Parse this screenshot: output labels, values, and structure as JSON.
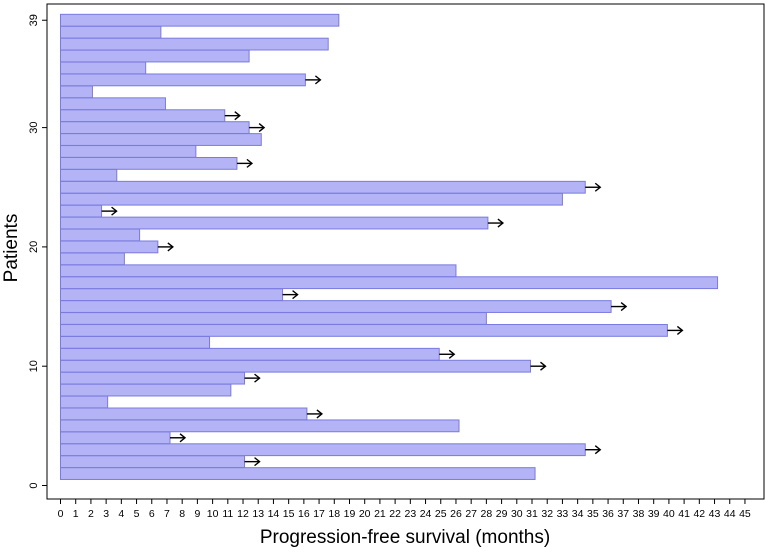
{
  "chart_data": {
    "type": "bar",
    "orientation": "horizontal",
    "xlabel": "Progression-free survival (months)",
    "ylabel": "Patients",
    "xlim": [
      0,
      46
    ],
    "ylim": [
      0,
      40
    ],
    "x_ticks": [
      0,
      1,
      2,
      3,
      4,
      5,
      6,
      7,
      8,
      9,
      10,
      11,
      12,
      13,
      14,
      15,
      16,
      17,
      18,
      19,
      20,
      21,
      22,
      23,
      24,
      25,
      26,
      27,
      28,
      29,
      30,
      31,
      32,
      33,
      34,
      35,
      36,
      37,
      38,
      39,
      40,
      41,
      42,
      43,
      44,
      45
    ],
    "x_tick_labels": [
      "0",
      "1",
      "2",
      "3",
      "4",
      "5",
      "6",
      "7",
      "8",
      "9",
      "10",
      "11",
      "12",
      "13",
      "14",
      "15",
      "16",
      "17",
      "18",
      "19",
      "20",
      "21",
      "22",
      "23",
      "24",
      "25",
      "26",
      "27",
      "28",
      "29",
      "30",
      "31",
      "32",
      "33",
      "34",
      "35",
      "36",
      "37",
      "38",
      "39",
      "40",
      "41",
      "42",
      "43",
      "44",
      "45"
    ],
    "y_ticks": [
      0,
      10,
      20,
      30,
      39
    ],
    "y_tick_labels": [
      "0",
      "10",
      "20",
      "30",
      "39"
    ],
    "bar_color": "#b3b3f5",
    "bar_edge_color": "#7a7ae0",
    "arrow_color": "#000000",
    "patients": [
      1,
      2,
      3,
      4,
      5,
      6,
      7,
      8,
      9,
      10,
      11,
      12,
      13,
      14,
      15,
      16,
      17,
      18,
      19,
      20,
      21,
      22,
      23,
      24,
      25,
      26,
      27,
      28,
      29,
      30,
      31,
      32,
      33,
      34,
      35,
      36,
      37,
      38,
      39
    ],
    "values": [
      31.2,
      12.1,
      34.5,
      7.2,
      26.2,
      16.2,
      3.1,
      11.2,
      12.1,
      30.9,
      24.9,
      9.8,
      39.9,
      28.0,
      36.2,
      14.6,
      43.2,
      26.0,
      4.2,
      6.4,
      5.2,
      28.1,
      2.7,
      33.0,
      34.5,
      3.7,
      11.6,
      8.9,
      13.2,
      12.4,
      10.8,
      6.9,
      2.1,
      16.1,
      5.6,
      12.4,
      17.6,
      6.6,
      18.3
    ],
    "censored": [
      false,
      true,
      true,
      true,
      false,
      true,
      false,
      false,
      true,
      true,
      true,
      false,
      true,
      false,
      true,
      true,
      false,
      false,
      false,
      true,
      false,
      true,
      true,
      false,
      true,
      false,
      true,
      false,
      false,
      true,
      true,
      false,
      false,
      true,
      false,
      false,
      false,
      false,
      false
    ]
  }
}
